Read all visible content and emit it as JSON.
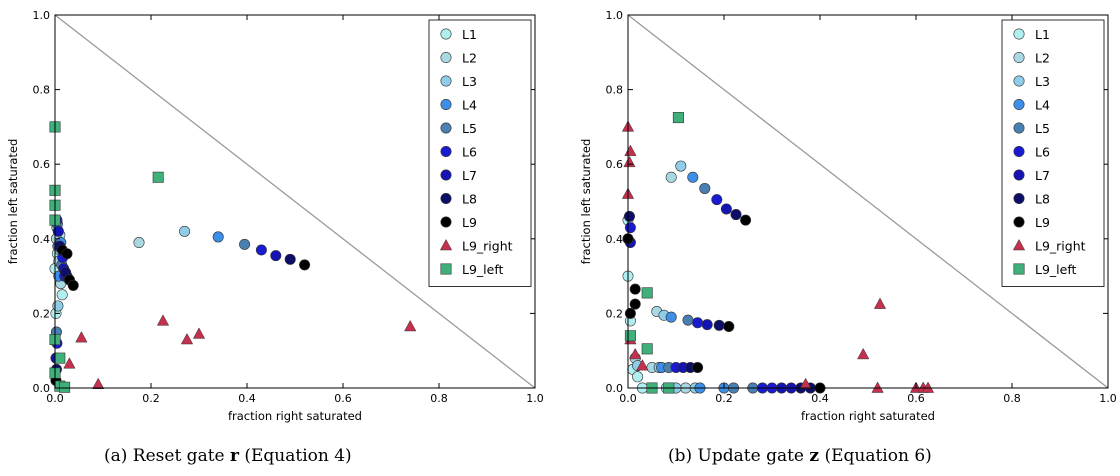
{
  "captions": [
    {
      "prefix": "(a) Reset gate ",
      "symbol": "r",
      "suffix": " (Equation 4)"
    },
    {
      "prefix": "(b) Update gate ",
      "symbol": "z",
      "suffix": " (Equation 6)"
    }
  ],
  "colors": {
    "L1": "#b0eef0",
    "L2": "#a8d8e2",
    "L3": "#8fcce8",
    "L4": "#3c8ee6",
    "L5": "#4a7fb2",
    "L6": "#1a1ad0",
    "L7": "#1414b4",
    "L8": "#0d0d6a",
    "L9": "#000000",
    "L9_right": "#c4314f",
    "L9_left": "#3fb07a",
    "diagonal": "#9a9a9a"
  },
  "chart_data": [
    {
      "type": "scatter",
      "xlabel": "fraction right saturated",
      "ylabel": "fraction left saturated",
      "xlim": [
        0,
        1
      ],
      "ylim": [
        0,
        1
      ],
      "xticks": [
        "0.0",
        "0.2",
        "0.4",
        "0.6",
        "0.8",
        "1.0"
      ],
      "yticks": [
        "0.0",
        "0.2",
        "0.4",
        "0.6",
        "0.8",
        "1.0"
      ],
      "legend_position": "top-right",
      "reference_line": {
        "from": [
          0,
          1
        ],
        "to": [
          1,
          0
        ]
      },
      "series": [
        {
          "name": "L1",
          "marker": "circle",
          "points": [
            [
              0.0,
              0.32
            ],
            [
              0.005,
              0.36
            ],
            [
              0.01,
              0.41
            ],
            [
              0.015,
              0.25
            ],
            [
              0.002,
              0.2
            ]
          ]
        },
        {
          "name": "L2",
          "marker": "circle",
          "points": [
            [
              0.175,
              0.39
            ],
            [
              0.003,
              0.4
            ],
            [
              0.008,
              0.34
            ],
            [
              0.012,
              0.28
            ]
          ]
        },
        {
          "name": "L3",
          "marker": "circle",
          "points": [
            [
              0.27,
              0.42
            ],
            [
              0.004,
              0.43
            ],
            [
              0.01,
              0.37
            ],
            [
              0.006,
              0.22
            ]
          ]
        },
        {
          "name": "L4",
          "marker": "circle",
          "points": [
            [
              0.34,
              0.405
            ],
            [
              0.005,
              0.44
            ],
            [
              0.012,
              0.39
            ],
            [
              0.008,
              0.3
            ]
          ]
        },
        {
          "name": "L5",
          "marker": "circle",
          "points": [
            [
              0.395,
              0.385
            ],
            [
              0.006,
              0.38
            ],
            [
              0.014,
              0.33
            ],
            [
              0.003,
              0.15
            ]
          ]
        },
        {
          "name": "L6",
          "marker": "circle",
          "points": [
            [
              0.43,
              0.37
            ],
            [
              0.004,
              0.45
            ],
            [
              0.016,
              0.35
            ],
            [
              0.02,
              0.3
            ],
            [
              0.004,
              0.12
            ]
          ]
        },
        {
          "name": "L7",
          "marker": "circle",
          "points": [
            [
              0.46,
              0.355
            ],
            [
              0.007,
              0.42
            ],
            [
              0.018,
              0.32
            ],
            [
              0.025,
              0.3
            ],
            [
              0.002,
              0.08
            ]
          ]
        },
        {
          "name": "L8",
          "marker": "circle",
          "points": [
            [
              0.49,
              0.345
            ],
            [
              0.01,
              0.38
            ],
            [
              0.022,
              0.31
            ],
            [
              0.03,
              0.29
            ],
            [
              0.003,
              0.05
            ]
          ]
        },
        {
          "name": "L9",
          "marker": "circle",
          "points": [
            [
              0.52,
              0.33
            ],
            [
              0.015,
              0.37
            ],
            [
              0.025,
              0.36
            ],
            [
              0.03,
              0.29
            ],
            [
              0.038,
              0.275
            ],
            [
              0.002,
              0.02
            ]
          ]
        },
        {
          "name": "L9_right",
          "marker": "triangle",
          "points": [
            [
              0.74,
              0.165
            ],
            [
              0.225,
              0.18
            ],
            [
              0.3,
              0.145
            ],
            [
              0.275,
              0.13
            ],
            [
              0.055,
              0.135
            ],
            [
              0.03,
              0.065
            ],
            [
              0.09,
              0.01
            ]
          ]
        },
        {
          "name": "L9_left",
          "marker": "square",
          "points": [
            [
              0.0,
              0.7
            ],
            [
              0.215,
              0.565
            ],
            [
              0.0,
              0.53
            ],
            [
              0.0,
              0.49
            ],
            [
              0.0,
              0.45
            ],
            [
              0.0,
              0.13
            ],
            [
              0.01,
              0.08
            ],
            [
              0.0,
              0.04
            ],
            [
              0.01,
              0.005
            ],
            [
              0.02,
              0.002
            ]
          ]
        }
      ]
    },
    {
      "type": "scatter",
      "xlabel": "fraction right saturated",
      "ylabel": "fraction left saturated",
      "xlim": [
        0,
        1
      ],
      "ylim": [
        0,
        1
      ],
      "xticks": [
        "0.0",
        "0.2",
        "0.4",
        "0.6",
        "0.8",
        "1.0"
      ],
      "yticks": [
        "0.0",
        "0.2",
        "0.4",
        "0.6",
        "0.8",
        "1.0"
      ],
      "legend_position": "top-right",
      "reference_line": {
        "from": [
          0,
          1
        ],
        "to": [
          1,
          0
        ]
      },
      "series": [
        {
          "name": "L1",
          "marker": "circle",
          "points": [
            [
              0.0,
              0.45
            ],
            [
              0.0,
              0.3
            ],
            [
              0.005,
              0.18
            ],
            [
              0.01,
              0.05
            ],
            [
              0.02,
              0.03
            ],
            [
              0.03,
              0.0
            ],
            [
              0.05,
              0.0
            ]
          ]
        },
        {
          "name": "L2",
          "marker": "circle",
          "points": [
            [
              0.09,
              0.565
            ],
            [
              0.06,
              0.205
            ],
            [
              0.015,
              0.08
            ],
            [
              0.05,
              0.055
            ],
            [
              0.08,
              0.0
            ],
            [
              0.12,
              0.0
            ]
          ]
        },
        {
          "name": "L3",
          "marker": "circle",
          "points": [
            [
              0.11,
              0.595
            ],
            [
              0.075,
              0.195
            ],
            [
              0.02,
              0.06
            ],
            [
              0.065,
              0.055
            ],
            [
              0.1,
              0.0
            ],
            [
              0.14,
              0.0
            ]
          ]
        },
        {
          "name": "L4",
          "marker": "circle",
          "points": [
            [
              0.135,
              0.565
            ],
            [
              0.09,
              0.19
            ],
            [
              0.07,
              0.055
            ],
            [
              0.15,
              0.0
            ],
            [
              0.2,
              0.0
            ]
          ]
        },
        {
          "name": "L5",
          "marker": "circle",
          "points": [
            [
              0.16,
              0.535
            ],
            [
              0.125,
              0.182
            ],
            [
              0.085,
              0.055
            ],
            [
              0.22,
              0.0
            ],
            [
              0.26,
              0.0
            ]
          ]
        },
        {
          "name": "L6",
          "marker": "circle",
          "points": [
            [
              0.185,
              0.505
            ],
            [
              0.145,
              0.175
            ],
            [
              0.1,
              0.055
            ],
            [
              0.005,
              0.43
            ],
            [
              0.28,
              0.0
            ],
            [
              0.3,
              0.0
            ]
          ]
        },
        {
          "name": "L7",
          "marker": "circle",
          "points": [
            [
              0.205,
              0.48
            ],
            [
              0.165,
              0.17
            ],
            [
              0.115,
              0.055
            ],
            [
              0.005,
              0.39
            ],
            [
              0.32,
              0.0
            ],
            [
              0.34,
              0.0
            ]
          ]
        },
        {
          "name": "L8",
          "marker": "circle",
          "points": [
            [
              0.225,
              0.465
            ],
            [
              0.19,
              0.168
            ],
            [
              0.13,
              0.055
            ],
            [
              0.003,
              0.46
            ],
            [
              0.36,
              0.0
            ],
            [
              0.38,
              0.0
            ]
          ]
        },
        {
          "name": "L9",
          "marker": "circle",
          "points": [
            [
              0.245,
              0.45
            ],
            [
              0.21,
              0.165
            ],
            [
              0.145,
              0.055
            ],
            [
              0.0,
              0.4
            ],
            [
              0.015,
              0.265
            ],
            [
              0.015,
              0.225
            ],
            [
              0.005,
              0.2
            ],
            [
              0.4,
              0.0
            ]
          ]
        },
        {
          "name": "L9_right",
          "marker": "triangle",
          "points": [
            [
              0.0,
              0.7
            ],
            [
              0.005,
              0.635
            ],
            [
              0.003,
              0.605
            ],
            [
              0.0,
              0.52
            ],
            [
              0.525,
              0.225
            ],
            [
              0.49,
              0.09
            ],
            [
              0.37,
              0.01
            ],
            [
              0.005,
              0.13
            ],
            [
              0.015,
              0.09
            ],
            [
              0.03,
              0.06
            ],
            [
              0.52,
              0.0
            ],
            [
              0.6,
              0.0
            ],
            [
              0.615,
              0.0
            ],
            [
              0.625,
              0.0
            ]
          ]
        },
        {
          "name": "L9_left",
          "marker": "square",
          "points": [
            [
              0.105,
              0.725
            ],
            [
              0.04,
              0.255
            ],
            [
              0.04,
              0.105
            ],
            [
              0.005,
              0.14
            ],
            [
              0.05,
              0.0
            ],
            [
              0.085,
              0.0
            ]
          ]
        }
      ]
    }
  ]
}
